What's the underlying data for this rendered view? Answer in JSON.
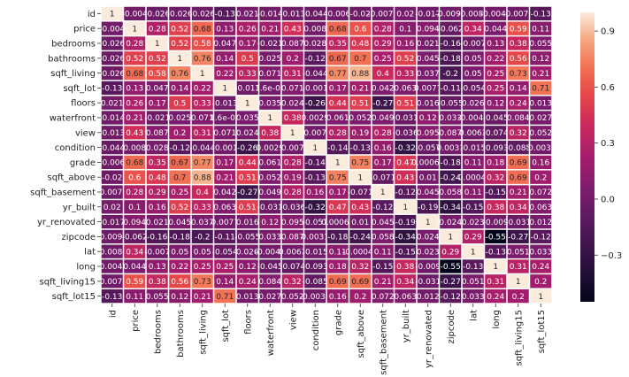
{
  "chart_data": {
    "type": "heatmap",
    "title": "",
    "xlabel": "",
    "ylabel": "",
    "rows": [
      "id",
      "price",
      "bedrooms",
      "bathrooms",
      "sqft_living",
      "sqft_lot",
      "floors",
      "waterfront",
      "view",
      "condition",
      "grade",
      "sqft_above",
      "sqft_basement",
      "yr_built",
      "yr_renovated",
      "zipcode",
      "lat",
      "long",
      "sqft_living15",
      "sqft_lot15"
    ],
    "columns": [
      "id",
      "price",
      "bedrooms",
      "bathrooms",
      "sqft_living",
      "sqft_lot",
      "floors",
      "waterfront",
      "view",
      "condition",
      "grade",
      "sqft_above",
      "sqft_basement",
      "yr_built",
      "yr_renovated",
      "zipcode",
      "lat",
      "long",
      "sqft_living15",
      "sqft_lot15"
    ],
    "values": [
      [
        1,
        -0.004,
        -0.026,
        -0.026,
        -0.026,
        -0.13,
        0.021,
        -0.014,
        -0.013,
        -0.044,
        -0.006,
        -0.02,
        -0.0071,
        0.02,
        -0.017,
        -0.0091,
        -0.0083,
        -0.0044,
        -0.0079,
        -0.13
      ],
      [
        -0.004,
        1,
        0.28,
        0.52,
        0.68,
        0.13,
        0.26,
        0.21,
        0.43,
        0.008,
        0.68,
        0.6,
        0.28,
        0.1,
        0.094,
        -0.062,
        0.34,
        0.044,
        0.59,
        0.11
      ],
      [
        -0.026,
        0.28,
        1,
        0.52,
        0.58,
        0.047,
        0.17,
        -0.021,
        0.087,
        0.028,
        0.35,
        0.48,
        0.29,
        0.16,
        0.021,
        -0.16,
        -0.007,
        0.13,
        0.38,
        0.055
      ],
      [
        -0.026,
        0.52,
        0.52,
        1,
        0.76,
        0.14,
        0.5,
        0.025,
        0.2,
        -0.12,
        0.67,
        0.7,
        0.25,
        0.52,
        0.045,
        -0.18,
        0.05,
        0.22,
        0.56,
        0.12
      ],
      [
        -0.026,
        0.68,
        0.58,
        0.76,
        1,
        0.22,
        0.33,
        0.071,
        0.31,
        -0.044,
        0.77,
        0.88,
        0.4,
        0.33,
        0.037,
        -0.2,
        0.05,
        0.25,
        0.73,
        0.21
      ],
      [
        -0.13,
        0.13,
        0.047,
        0.14,
        0.22,
        1,
        -0.013,
        1.6e-05,
        0.071,
        -0.001,
        0.17,
        0.21,
        0.042,
        0.063,
        0.0077,
        -0.11,
        -0.054,
        0.25,
        0.14,
        0.71
      ],
      [
        0.021,
        0.26,
        0.17,
        0.5,
        0.33,
        -0.013,
        1,
        0.035,
        0.024,
        -0.26,
        0.44,
        0.51,
        -0.27,
        0.51,
        0.016,
        -0.055,
        0.026,
        0.12,
        0.24,
        0.013
      ],
      [
        -0.014,
        0.21,
        -0.021,
        0.025,
        0.071,
        1.6e-05,
        0.035,
        1,
        0.38,
        0.0029,
        0.061,
        0.052,
        0.049,
        -0.031,
        0.12,
        0.033,
        -0.0041,
        -0.045,
        0.084,
        0.027
      ],
      [
        -0.013,
        0.43,
        0.087,
        0.2,
        0.31,
        0.071,
        0.024,
        0.38,
        1,
        0.007,
        0.28,
        0.19,
        0.28,
        -0.036,
        0.095,
        0.087,
        0.0063,
        -0.074,
        0.32,
        0.052
      ],
      [
        -0.044,
        0.008,
        0.028,
        -0.12,
        -0.044,
        -0.001,
        -0.26,
        0.0029,
        0.007,
        1,
        -0.14,
        -0.13,
        0.16,
        -0.32,
        -0.057,
        0.0031,
        -0.015,
        -0.093,
        -0.085,
        -0.0033
      ],
      [
        -0.006,
        0.68,
        0.35,
        0.67,
        0.77,
        0.17,
        0.44,
        0.061,
        0.28,
        -0.14,
        1,
        0.75,
        0.17,
        0.47,
        0.00064,
        -0.18,
        0.11,
        0.18,
        0.69,
        0.16
      ],
      [
        -0.02,
        0.6,
        0.48,
        0.7,
        0.88,
        0.21,
        0.51,
        0.052,
        0.19,
        -0.13,
        0.75,
        1,
        -0.071,
        0.43,
        0.01,
        -0.24,
        -0.00043,
        0.32,
        0.69,
        0.2
      ],
      [
        -0.0071,
        0.28,
        0.29,
        0.25,
        0.4,
        0.042,
        -0.27,
        0.049,
        0.28,
        0.16,
        0.17,
        -0.071,
        1,
        -0.12,
        0.045,
        0.058,
        0.11,
        -0.15,
        0.21,
        0.072
      ],
      [
        0.02,
        0.1,
        0.16,
        0.52,
        0.33,
        0.063,
        0.51,
        -0.031,
        -0.036,
        -0.32,
        0.47,
        0.43,
        -0.12,
        1,
        -0.19,
        -0.34,
        -0.15,
        0.38,
        0.34,
        0.063
      ],
      [
        -0.017,
        0.094,
        0.021,
        0.045,
        0.037,
        0.0077,
        0.016,
        0.12,
        0.095,
        -0.057,
        0.00064,
        0.01,
        0.045,
        -0.19,
        1,
        0.024,
        0.023,
        -0.009,
        -0.031,
        0.012
      ],
      [
        -0.0091,
        -0.062,
        -0.16,
        -0.18,
        -0.2,
        -0.11,
        -0.055,
        0.033,
        0.087,
        0.0031,
        -0.18,
        -0.24,
        0.058,
        -0.34,
        0.024,
        1,
        0.29,
        -0.55,
        -0.27,
        -0.12
      ],
      [
        -0.0083,
        0.34,
        -0.007,
        0.05,
        0.05,
        -0.054,
        0.026,
        -0.0041,
        0.0063,
        -0.015,
        0.11,
        -0.00043,
        0.11,
        -0.15,
        0.023,
        0.29,
        1,
        -0.13,
        0.051,
        0.033
      ],
      [
        -0.0044,
        0.044,
        0.13,
        0.22,
        0.25,
        0.25,
        0.12,
        -0.045,
        -0.074,
        -0.093,
        0.18,
        0.32,
        -0.15,
        0.38,
        -0.009,
        -0.55,
        -0.13,
        1,
        0.31,
        0.24
      ],
      [
        -0.0079,
        0.59,
        0.38,
        0.56,
        0.73,
        0.14,
        0.24,
        0.084,
        0.32,
        -0.085,
        0.69,
        0.69,
        0.21,
        0.34,
        -0.031,
        -0.27,
        0.051,
        0.31,
        1,
        0.2
      ],
      [
        -0.13,
        0.11,
        0.055,
        0.12,
        0.21,
        0.71,
        0.013,
        0.027,
        0.052,
        -0.0033,
        0.16,
        0.2,
        0.072,
        0.063,
        0.012,
        -0.12,
        0.033,
        0.24,
        0.2,
        1
      ]
    ],
    "labels": [
      [
        "1",
        "-0.004",
        "-0.026",
        "-0.026",
        "-0.026",
        "-0.13",
        "0.021",
        "-0.014",
        "-0.013",
        "-0.044",
        "-0.006",
        "-0.02",
        "-0.0071",
        "0.02",
        "-0.017",
        "-0.0091",
        "-0.0083",
        "-0.0044",
        "-0.0079",
        "-0.13"
      ],
      [
        "-0.004",
        "1",
        "0.28",
        "0.52",
        "0.68",
        "0.13",
        "0.26",
        "0.21",
        "0.43",
        "0.008",
        "0.68",
        "0.6",
        "0.28",
        "0.1",
        "0.094",
        "-0.062",
        "0.34",
        "0.044",
        "0.59",
        "0.11"
      ],
      [
        "-0.026",
        "0.28",
        "1",
        "0.52",
        "0.58",
        "0.047",
        "0.17",
        "-0.021",
        "0.087",
        "0.028",
        "0.35",
        "0.48",
        "0.29",
        "0.16",
        "0.021",
        "-0.16",
        "-0.007",
        "0.13",
        "0.38",
        "0.055"
      ],
      [
        "-0.026",
        "0.52",
        "0.52",
        "1",
        "0.76",
        "0.14",
        "0.5",
        "0.025",
        "0.2",
        "-0.12",
        "0.67",
        "0.7",
        "0.25",
        "0.52",
        "0.045",
        "-0.18",
        "0.05",
        "0.22",
        "0.56",
        "0.12"
      ],
      [
        "-0.026",
        "0.68",
        "0.58",
        "0.76",
        "1",
        "0.22",
        "0.33",
        "0.071",
        "0.31",
        "-0.044",
        "0.77",
        "0.88",
        "0.4",
        "0.33",
        "0.037",
        "-0.2",
        "0.05",
        "0.25",
        "0.73",
        "0.21"
      ],
      [
        "-0.13",
        "0.13",
        "0.047",
        "0.14",
        "0.22",
        "1",
        "-0.013",
        "1.6e-05",
        "0.071",
        "-0.001",
        "0.17",
        "0.21",
        "0.042",
        "0.063",
        "0.0077",
        "-0.11",
        "-0.054",
        "0.25",
        "0.14",
        "0.71"
      ],
      [
        "0.021",
        "0.26",
        "0.17",
        "0.5",
        "0.33",
        "-0.013",
        "1",
        "0.035",
        "0.024",
        "-0.26",
        "0.44",
        "0.51",
        "-0.27",
        "0.51",
        "0.016",
        "-0.055",
        "0.026",
        "0.12",
        "0.24",
        "0.013"
      ],
      [
        "-0.014",
        "0.21",
        "-0.021",
        "0.025",
        "0.071",
        "1.6e-05",
        "0.035",
        "1",
        "0.38",
        "0.0029",
        "0.061",
        "0.052",
        "0.049",
        "-0.031",
        "0.12",
        "0.033",
        "-0.0041",
        "-0.045",
        "0.084",
        "0.027"
      ],
      [
        "-0.013",
        "0.43",
        "0.087",
        "0.2",
        "0.31",
        "0.071",
        "0.024",
        "0.38",
        "1",
        "0.007",
        "0.28",
        "0.19",
        "0.28",
        "-0.036",
        "0.095",
        "0.087",
        "0.0063",
        "-0.074",
        "0.32",
        "0.052"
      ],
      [
        "-0.044",
        "0.008",
        "0.028",
        "-0.12",
        "-0.044",
        "-0.001",
        "-0.26",
        "0.0029",
        "0.007",
        "1",
        "-0.14",
        "-0.13",
        "0.16",
        "-0.32",
        "-0.057",
        "0.0031",
        "-0.015",
        "-0.093",
        "-0.085",
        "-0.0033"
      ],
      [
        "-0.006",
        "0.68",
        "0.35",
        "0.67",
        "0.77",
        "0.17",
        "0.44",
        "0.061",
        "0.28",
        "-0.14",
        "1",
        "0.75",
        "0.17",
        "0.47",
        "0.00064",
        "-0.18",
        "0.11",
        "0.18",
        "0.69",
        "0.16"
      ],
      [
        "-0.02",
        "0.6",
        "0.48",
        "0.7",
        "0.88",
        "0.21",
        "0.51",
        "0.052",
        "0.19",
        "-0.13",
        "0.75",
        "1",
        "-0.071",
        "0.43",
        "0.01",
        "-0.24",
        "-0.00043",
        "0.32",
        "0.69",
        "0.2"
      ],
      [
        "-0.0071",
        "0.28",
        "0.29",
        "0.25",
        "0.4",
        "0.042",
        "-0.27",
        "0.049",
        "0.28",
        "0.16",
        "0.17",
        "-0.071",
        "1",
        "-0.12",
        "0.045",
        "0.058",
        "0.11",
        "-0.15",
        "0.21",
        "0.072"
      ],
      [
        "0.02",
        "0.1",
        "0.16",
        "0.52",
        "0.33",
        "0.063",
        "0.51",
        "-0.031",
        "-0.036",
        "-0.32",
        "0.47",
        "0.43",
        "-0.12",
        "1",
        "-0.19",
        "-0.34",
        "-0.15",
        "0.38",
        "0.34",
        "0.063"
      ],
      [
        "-0.017",
        "0.094",
        "0.021",
        "0.045",
        "0.037",
        "0.0077",
        "0.016",
        "0.12",
        "0.095",
        "-0.057",
        "0.00064",
        "0.01",
        "0.045",
        "-0.19",
        "1",
        "0.024",
        "0.023",
        "-0.009",
        "-0.031",
        "0.012"
      ],
      [
        "-0.0091",
        "-0.062",
        "-0.16",
        "-0.18",
        "-0.2",
        "-0.11",
        "-0.055",
        "0.033",
        "0.087",
        "0.0031",
        "-0.18",
        "-0.24",
        "0.058",
        "-0.34",
        "0.024",
        "1",
        "0.29",
        "-0.55",
        "-0.27",
        "-0.12"
      ],
      [
        "-0.0083",
        "0.34",
        "-0.007",
        "0.05",
        "0.05",
        "-0.054",
        "0.026",
        "-0.0041",
        "0.0063",
        "-0.015",
        "0.11",
        "-0.00043",
        "0.11",
        "-0.15",
        "0.023",
        "0.29",
        "1",
        "-0.13",
        "0.051",
        "0.033"
      ],
      [
        "-0.0044",
        "0.044",
        "0.13",
        "0.22",
        "0.25",
        "0.25",
        "0.12",
        "-0.045",
        "-0.074",
        "-0.093",
        "0.18",
        "0.32",
        "-0.15",
        "0.38",
        "-0.009",
        "-0.55",
        "-0.13",
        "1",
        "0.31",
        "0.24"
      ],
      [
        "-0.0079",
        "0.59",
        "0.38",
        "0.56",
        "0.73",
        "0.14",
        "0.24",
        "0.084",
        "0.32",
        "-0.085",
        "0.69",
        "0.69",
        "0.21",
        "0.34",
        "-0.031",
        "-0.27",
        "0.051",
        "0.31",
        "1",
        "0.2"
      ],
      [
        "-0.13",
        "0.11",
        "0.055",
        "0.12",
        "0.21",
        "0.71",
        "0.013",
        "0.027",
        "0.052",
        "-0.0033",
        "0.16",
        "0.2",
        "0.072",
        "0.063",
        "0.012",
        "-0.12",
        "0.033",
        "0.24",
        "0.2",
        "1"
      ]
    ],
    "colorbar": {
      "ticks": [
        0.9,
        0.6,
        0.3,
        0.0,
        -0.3
      ],
      "tick_labels": [
        "0.9",
        "0.6",
        "0.3",
        "0.0",
        "−0.3"
      ],
      "range": [
        -0.55,
        1.0
      ]
    },
    "colormap": "rocket",
    "cell_gap_color": "#ffffff",
    "grid": false,
    "legend": "colorbar-right"
  }
}
